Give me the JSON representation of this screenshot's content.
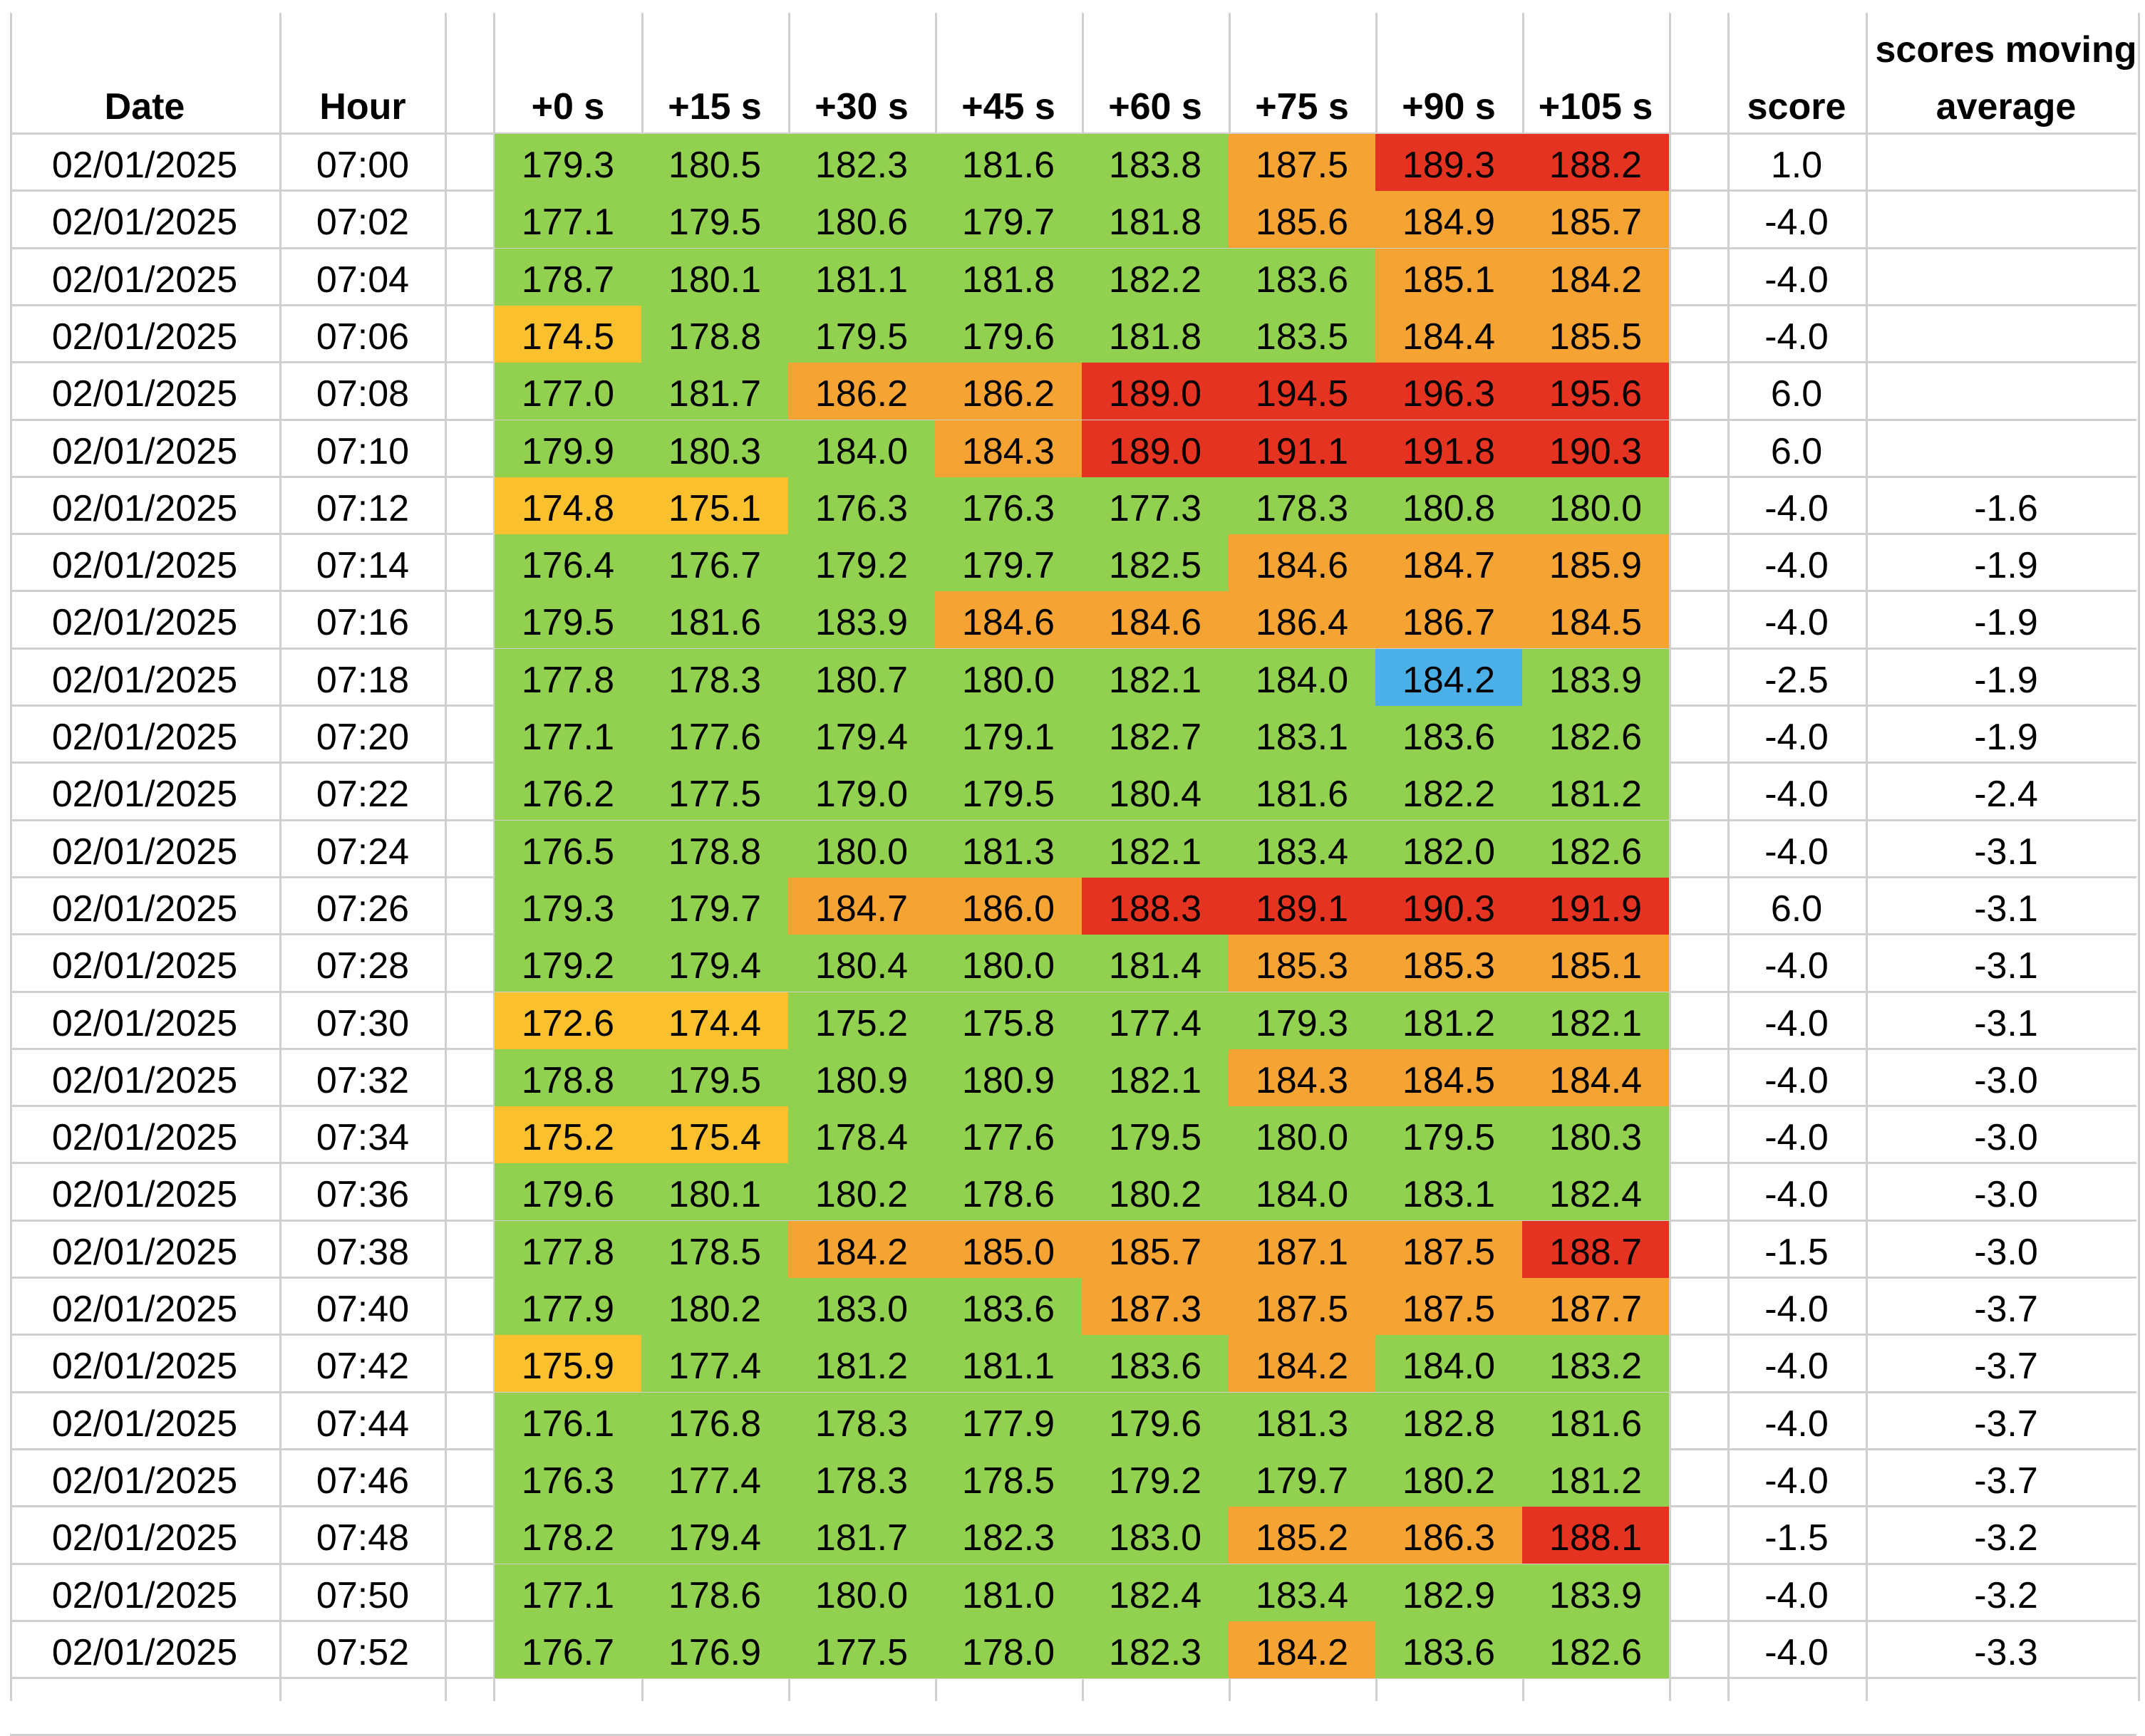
{
  "headers": {
    "date": "Date",
    "hour": "Hour",
    "offsets": [
      "+0 s",
      "+15 s",
      "+30 s",
      "+45 s",
      "+60 s",
      "+75 s",
      "+90 s",
      "+105 s"
    ],
    "score": "score",
    "ma_line1": "scores moving",
    "ma_line2": "average"
  },
  "colors": {
    "green": "#92d050",
    "yellow": "#fbc02d",
    "orange": "#f5a433",
    "red": "#e53322",
    "blue": "#4cb0e8"
  },
  "rows": [
    {
      "date": "02/01/2025",
      "hour": "07:00",
      "values": [
        "179.3",
        "180.5",
        "182.3",
        "181.6",
        "183.8",
        "187.5",
        "189.3",
        "188.2"
      ],
      "colors": [
        "green",
        "green",
        "green",
        "green",
        "green",
        "orange",
        "red",
        "red"
      ],
      "score": "1.0",
      "ma": ""
    },
    {
      "date": "02/01/2025",
      "hour": "07:02",
      "values": [
        "177.1",
        "179.5",
        "180.6",
        "179.7",
        "181.8",
        "185.6",
        "184.9",
        "185.7"
      ],
      "colors": [
        "green",
        "green",
        "green",
        "green",
        "green",
        "orange",
        "orange",
        "orange"
      ],
      "score": "-4.0",
      "ma": ""
    },
    {
      "date": "02/01/2025",
      "hour": "07:04",
      "values": [
        "178.7",
        "180.1",
        "181.1",
        "181.8",
        "182.2",
        "183.6",
        "185.1",
        "184.2"
      ],
      "colors": [
        "green",
        "green",
        "green",
        "green",
        "green",
        "green",
        "orange",
        "orange"
      ],
      "score": "-4.0",
      "ma": ""
    },
    {
      "date": "02/01/2025",
      "hour": "07:06",
      "values": [
        "174.5",
        "178.8",
        "179.5",
        "179.6",
        "181.8",
        "183.5",
        "184.4",
        "185.5"
      ],
      "colors": [
        "yellow",
        "green",
        "green",
        "green",
        "green",
        "green",
        "orange",
        "orange"
      ],
      "score": "-4.0",
      "ma": ""
    },
    {
      "date": "02/01/2025",
      "hour": "07:08",
      "values": [
        "177.0",
        "181.7",
        "186.2",
        "186.2",
        "189.0",
        "194.5",
        "196.3",
        "195.6"
      ],
      "colors": [
        "green",
        "green",
        "orange",
        "orange",
        "red",
        "red",
        "red",
        "red"
      ],
      "score": "6.0",
      "ma": ""
    },
    {
      "date": "02/01/2025",
      "hour": "07:10",
      "values": [
        "179.9",
        "180.3",
        "184.0",
        "184.3",
        "189.0",
        "191.1",
        "191.8",
        "190.3"
      ],
      "colors": [
        "green",
        "green",
        "green",
        "orange",
        "red",
        "red",
        "red",
        "red"
      ],
      "score": "6.0",
      "ma": ""
    },
    {
      "date": "02/01/2025",
      "hour": "07:12",
      "values": [
        "174.8",
        "175.1",
        "176.3",
        "176.3",
        "177.3",
        "178.3",
        "180.8",
        "180.0"
      ],
      "colors": [
        "yellow",
        "yellow",
        "green",
        "green",
        "green",
        "green",
        "green",
        "green"
      ],
      "score": "-4.0",
      "ma": "-1.6"
    },
    {
      "date": "02/01/2025",
      "hour": "07:14",
      "values": [
        "176.4",
        "176.7",
        "179.2",
        "179.7",
        "182.5",
        "184.6",
        "184.7",
        "185.9"
      ],
      "colors": [
        "green",
        "green",
        "green",
        "green",
        "green",
        "orange",
        "orange",
        "orange"
      ],
      "score": "-4.0",
      "ma": "-1.9"
    },
    {
      "date": "02/01/2025",
      "hour": "07:16",
      "values": [
        "179.5",
        "181.6",
        "183.9",
        "184.6",
        "184.6",
        "186.4",
        "186.7",
        "184.5"
      ],
      "colors": [
        "green",
        "green",
        "green",
        "orange",
        "orange",
        "orange",
        "orange",
        "orange"
      ],
      "score": "-4.0",
      "ma": "-1.9"
    },
    {
      "date": "02/01/2025",
      "hour": "07:18",
      "values": [
        "177.8",
        "178.3",
        "180.7",
        "180.0",
        "182.1",
        "184.0",
        "184.2",
        "183.9"
      ],
      "colors": [
        "green",
        "green",
        "green",
        "green",
        "green",
        "green",
        "blue",
        "green"
      ],
      "score": "-2.5",
      "ma": "-1.9"
    },
    {
      "date": "02/01/2025",
      "hour": "07:20",
      "values": [
        "177.1",
        "177.6",
        "179.4",
        "179.1",
        "182.7",
        "183.1",
        "183.6",
        "182.6"
      ],
      "colors": [
        "green",
        "green",
        "green",
        "green",
        "green",
        "green",
        "green",
        "green"
      ],
      "score": "-4.0",
      "ma": "-1.9"
    },
    {
      "date": "02/01/2025",
      "hour": "07:22",
      "values": [
        "176.2",
        "177.5",
        "179.0",
        "179.5",
        "180.4",
        "181.6",
        "182.2",
        "181.2"
      ],
      "colors": [
        "green",
        "green",
        "green",
        "green",
        "green",
        "green",
        "green",
        "green"
      ],
      "score": "-4.0",
      "ma": "-2.4"
    },
    {
      "date": "02/01/2025",
      "hour": "07:24",
      "values": [
        "176.5",
        "178.8",
        "180.0",
        "181.3",
        "182.1",
        "183.4",
        "182.0",
        "182.6"
      ],
      "colors": [
        "green",
        "green",
        "green",
        "green",
        "green",
        "green",
        "green",
        "green"
      ],
      "score": "-4.0",
      "ma": "-3.1"
    },
    {
      "date": "02/01/2025",
      "hour": "07:26",
      "values": [
        "179.3",
        "179.7",
        "184.7",
        "186.0",
        "188.3",
        "189.1",
        "190.3",
        "191.9"
      ],
      "colors": [
        "green",
        "green",
        "orange",
        "orange",
        "red",
        "red",
        "red",
        "red"
      ],
      "score": "6.0",
      "ma": "-3.1"
    },
    {
      "date": "02/01/2025",
      "hour": "07:28",
      "values": [
        "179.2",
        "179.4",
        "180.4",
        "180.0",
        "181.4",
        "185.3",
        "185.3",
        "185.1"
      ],
      "colors": [
        "green",
        "green",
        "green",
        "green",
        "green",
        "orange",
        "orange",
        "orange"
      ],
      "score": "-4.0",
      "ma": "-3.1"
    },
    {
      "date": "02/01/2025",
      "hour": "07:30",
      "values": [
        "172.6",
        "174.4",
        "175.2",
        "175.8",
        "177.4",
        "179.3",
        "181.2",
        "182.1"
      ],
      "colors": [
        "yellow",
        "yellow",
        "green",
        "green",
        "green",
        "green",
        "green",
        "green"
      ],
      "score": "-4.0",
      "ma": "-3.1"
    },
    {
      "date": "02/01/2025",
      "hour": "07:32",
      "values": [
        "178.8",
        "179.5",
        "180.9",
        "180.9",
        "182.1",
        "184.3",
        "184.5",
        "184.4"
      ],
      "colors": [
        "green",
        "green",
        "green",
        "green",
        "green",
        "orange",
        "orange",
        "orange"
      ],
      "score": "-4.0",
      "ma": "-3.0"
    },
    {
      "date": "02/01/2025",
      "hour": "07:34",
      "values": [
        "175.2",
        "175.4",
        "178.4",
        "177.6",
        "179.5",
        "180.0",
        "179.5",
        "180.3"
      ],
      "colors": [
        "yellow",
        "yellow",
        "green",
        "green",
        "green",
        "green",
        "green",
        "green"
      ],
      "score": "-4.0",
      "ma": "-3.0"
    },
    {
      "date": "02/01/2025",
      "hour": "07:36",
      "values": [
        "179.6",
        "180.1",
        "180.2",
        "178.6",
        "180.2",
        "184.0",
        "183.1",
        "182.4"
      ],
      "colors": [
        "green",
        "green",
        "green",
        "green",
        "green",
        "green",
        "green",
        "green"
      ],
      "score": "-4.0",
      "ma": "-3.0"
    },
    {
      "date": "02/01/2025",
      "hour": "07:38",
      "values": [
        "177.8",
        "178.5",
        "184.2",
        "185.0",
        "185.7",
        "187.1",
        "187.5",
        "188.7"
      ],
      "colors": [
        "green",
        "green",
        "orange",
        "orange",
        "orange",
        "orange",
        "orange",
        "red"
      ],
      "score": "-1.5",
      "ma": "-3.0"
    },
    {
      "date": "02/01/2025",
      "hour": "07:40",
      "values": [
        "177.9",
        "180.2",
        "183.0",
        "183.6",
        "187.3",
        "187.5",
        "187.5",
        "187.7"
      ],
      "colors": [
        "green",
        "green",
        "green",
        "green",
        "orange",
        "orange",
        "orange",
        "orange"
      ],
      "score": "-4.0",
      "ma": "-3.7"
    },
    {
      "date": "02/01/2025",
      "hour": "07:42",
      "values": [
        "175.9",
        "177.4",
        "181.2",
        "181.1",
        "183.6",
        "184.2",
        "184.0",
        "183.2"
      ],
      "colors": [
        "yellow",
        "green",
        "green",
        "green",
        "green",
        "orange",
        "green",
        "green"
      ],
      "score": "-4.0",
      "ma": "-3.7"
    },
    {
      "date": "02/01/2025",
      "hour": "07:44",
      "values": [
        "176.1",
        "176.8",
        "178.3",
        "177.9",
        "179.6",
        "181.3",
        "182.8",
        "181.6"
      ],
      "colors": [
        "green",
        "green",
        "green",
        "green",
        "green",
        "green",
        "green",
        "green"
      ],
      "score": "-4.0",
      "ma": "-3.7"
    },
    {
      "date": "02/01/2025",
      "hour": "07:46",
      "values": [
        "176.3",
        "177.4",
        "178.3",
        "178.5",
        "179.2",
        "179.7",
        "180.2",
        "181.2"
      ],
      "colors": [
        "green",
        "green",
        "green",
        "green",
        "green",
        "green",
        "green",
        "green"
      ],
      "score": "-4.0",
      "ma": "-3.7"
    },
    {
      "date": "02/01/2025",
      "hour": "07:48",
      "values": [
        "178.2",
        "179.4",
        "181.7",
        "182.3",
        "183.0",
        "185.2",
        "186.3",
        "188.1"
      ],
      "colors": [
        "green",
        "green",
        "green",
        "green",
        "green",
        "orange",
        "orange",
        "red"
      ],
      "score": "-1.5",
      "ma": "-3.2"
    },
    {
      "date": "02/01/2025",
      "hour": "07:50",
      "values": [
        "177.1",
        "178.6",
        "180.0",
        "181.0",
        "182.4",
        "183.4",
        "182.9",
        "183.9"
      ],
      "colors": [
        "green",
        "green",
        "green",
        "green",
        "green",
        "green",
        "green",
        "green"
      ],
      "score": "-4.0",
      "ma": "-3.2"
    },
    {
      "date": "02/01/2025",
      "hour": "07:52",
      "values": [
        "176.7",
        "176.9",
        "177.5",
        "178.0",
        "182.3",
        "184.2",
        "183.6",
        "182.6"
      ],
      "colors": [
        "green",
        "green",
        "green",
        "green",
        "green",
        "orange",
        "green",
        "green"
      ],
      "score": "-4.0",
      "ma": "-3.3"
    }
  ]
}
